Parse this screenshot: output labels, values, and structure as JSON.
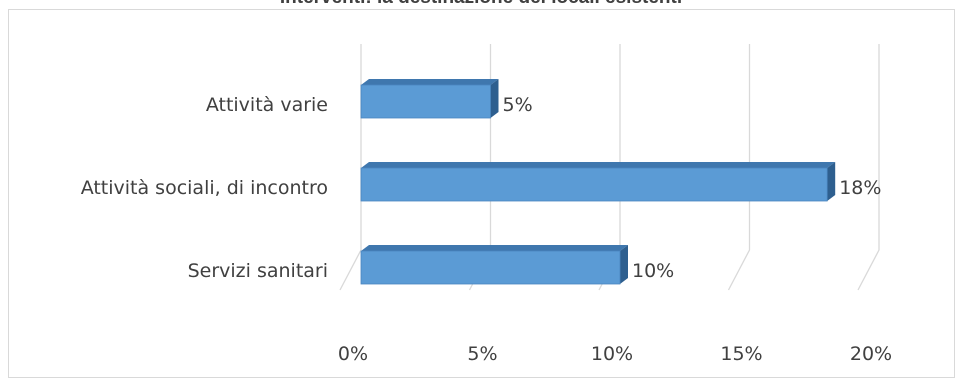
{
  "chart_data": {
    "type": "bar",
    "orientation": "horizontal",
    "style": "3d",
    "title": "Interventi: la destinazione dei locali esistenti",
    "categories": [
      "Attività varie",
      "Attività sociali, di incontro",
      "Servizi sanitari"
    ],
    "values": [
      5,
      18,
      10
    ],
    "data_labels": [
      "5%",
      "18%",
      "10%"
    ],
    "x_ticks": [
      "0%",
      "5%",
      "10%",
      "15%",
      "20%"
    ],
    "xlim": [
      0,
      20
    ],
    "grid": true,
    "bar_color": "#5b9bd5",
    "bar_side_color": "#2e5f8f",
    "bar_top_color": "#3f77ae",
    "grid_color": "#d9d9d9"
  }
}
